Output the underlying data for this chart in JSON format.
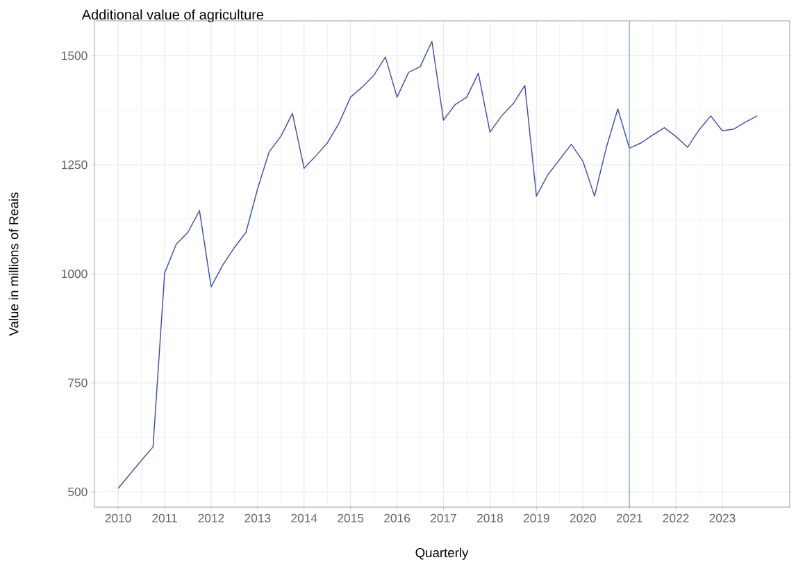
{
  "chart_data": {
    "type": "line",
    "title": "Additional value of agriculture",
    "xlabel": "Quarterly",
    "ylabel": "Value in millions of Reais",
    "x": [
      2010.0,
      2010.25,
      2010.5,
      2010.75,
      2011.0,
      2011.25,
      2011.5,
      2011.75,
      2012.0,
      2012.25,
      2012.5,
      2012.75,
      2013.0,
      2013.25,
      2013.5,
      2013.75,
      2014.0,
      2014.25,
      2014.5,
      2014.75,
      2015.0,
      2015.25,
      2015.5,
      2015.75,
      2016.0,
      2016.25,
      2016.5,
      2016.75,
      2017.0,
      2017.25,
      2017.5,
      2017.75,
      2018.0,
      2018.25,
      2018.5,
      2018.75,
      2019.0,
      2019.25,
      2019.5,
      2019.75,
      2020.0,
      2020.25,
      2020.5,
      2020.75,
      2021.0,
      2021.25,
      2021.5,
      2021.75,
      2022.0,
      2022.25,
      2022.5,
      2022.75,
      2023.0,
      2023.25,
      2023.5,
      2023.75
    ],
    "series": [
      {
        "color": "#3f51b5",
        "values": [
          508,
          540,
          572,
          603,
          1002,
          1068,
          1095,
          1145,
          970,
          1020,
          1060,
          1095,
          1195,
          1280,
          1315,
          1368,
          1242,
          1270,
          1300,
          1345,
          1405,
          1428,
          1455,
          1497,
          1405,
          1462,
          1475,
          1533,
          1352,
          1388,
          1405,
          1460,
          1325,
          1362,
          1390,
          1432,
          1178,
          1228,
          1262,
          1297,
          1258,
          1178,
          1288,
          1378,
          1288,
          1300,
          1318,
          1335,
          1315,
          1290,
          1330,
          1362,
          1328,
          1332,
          1348,
          1362
        ]
      }
    ],
    "xlim": [
      2009.49,
      2024.45
    ],
    "ylim": [
      465,
      1580
    ],
    "xticks": [
      2010,
      2011,
      2012,
      2013,
      2014,
      2015,
      2016,
      2017,
      2018,
      2019,
      2020,
      2021,
      2022,
      2023
    ],
    "yticks": [
      500,
      750,
      1000,
      1250,
      1500
    ],
    "ref_lines": [
      {
        "axis": "x",
        "value": 2021,
        "color": "#6f9be0"
      }
    ],
    "grid": true,
    "marker": "none",
    "line_style": "solid"
  }
}
